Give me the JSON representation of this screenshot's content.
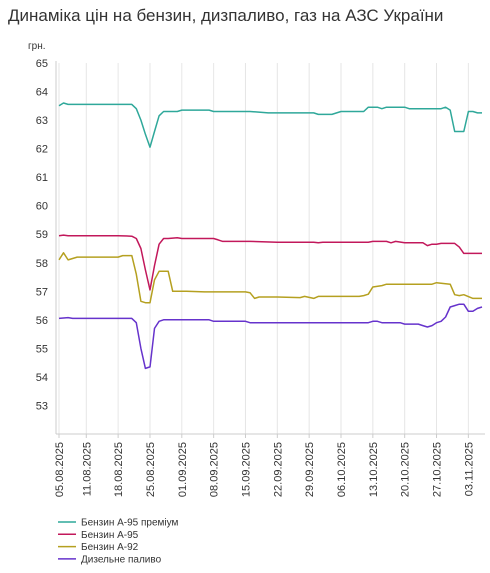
{
  "title": "Динаміка цін на бензин, дизпаливо, газ на АЗС України",
  "chart_data": {
    "type": "line",
    "title": "Динаміка цін на бензин, дизпаливо, газ на АЗС України",
    "ylabel": "грн.",
    "xlabel": "",
    "ylim": [
      52,
      65
    ],
    "yticks": [
      53,
      54,
      55,
      56,
      57,
      58,
      59,
      60,
      61,
      62,
      63,
      64,
      65
    ],
    "x_tick_labels": [
      "05.08.2025",
      "11.08.2025",
      "18.08.2025",
      "25.08.2025",
      "01.09.2025",
      "08.09.2025",
      "15.09.2025",
      "22.09.2025",
      "29.09.2025",
      "06.10.2025",
      "13.10.2025",
      "20.10.2025",
      "27.10.2025",
      "03.11.2025"
    ],
    "x_tick_index": [
      0,
      6,
      13,
      20,
      27,
      34,
      41,
      48,
      55,
      62,
      69,
      76,
      83,
      90
    ],
    "x_count": 94,
    "grid": "vertical",
    "legend_position": "bottom-left",
    "series": [
      {
        "name": "Бензин А-95 преміум",
        "color": "#2fa89a",
        "points": [
          [
            0,
            63.5
          ],
          [
            1,
            63.6
          ],
          [
            2,
            63.55
          ],
          [
            3,
            63.55
          ],
          [
            13,
            63.55
          ],
          [
            16,
            63.55
          ],
          [
            17,
            63.4
          ],
          [
            18,
            63.0
          ],
          [
            19,
            62.5
          ],
          [
            20,
            62.05
          ],
          [
            21,
            62.6
          ],
          [
            22,
            63.15
          ],
          [
            23,
            63.3
          ],
          [
            24,
            63.3
          ],
          [
            26,
            63.3
          ],
          [
            27,
            63.35
          ],
          [
            33,
            63.35
          ],
          [
            34,
            63.3
          ],
          [
            41,
            63.3
          ],
          [
            42,
            63.3
          ],
          [
            46,
            63.25
          ],
          [
            48,
            63.25
          ],
          [
            56,
            63.25
          ],
          [
            57,
            63.2
          ],
          [
            60,
            63.2
          ],
          [
            62,
            63.3
          ],
          [
            67,
            63.3
          ],
          [
            68,
            63.45
          ],
          [
            70,
            63.45
          ],
          [
            71,
            63.4
          ],
          [
            72,
            63.45
          ],
          [
            76,
            63.45
          ],
          [
            77,
            63.4
          ],
          [
            84,
            63.4
          ],
          [
            85,
            63.45
          ],
          [
            86,
            63.35
          ],
          [
            87,
            62.6
          ],
          [
            88,
            62.6
          ],
          [
            89,
            62.6
          ],
          [
            90,
            63.3
          ],
          [
            91,
            63.3
          ],
          [
            92,
            63.25
          ],
          [
            93,
            63.25
          ]
        ]
      },
      {
        "name": "Бензин А-95",
        "color": "#c2185b",
        "points": [
          [
            0,
            58.95
          ],
          [
            1,
            58.97
          ],
          [
            2,
            58.95
          ],
          [
            13,
            58.95
          ],
          [
            16,
            58.93
          ],
          [
            17,
            58.85
          ],
          [
            18,
            58.5
          ],
          [
            19,
            57.75
          ],
          [
            20,
            57.05
          ],
          [
            21,
            57.9
          ],
          [
            22,
            58.65
          ],
          [
            23,
            58.85
          ],
          [
            24,
            58.85
          ],
          [
            26,
            58.88
          ],
          [
            27,
            58.85
          ],
          [
            34,
            58.85
          ],
          [
            35,
            58.8
          ],
          [
            36,
            58.75
          ],
          [
            42,
            58.75
          ],
          [
            48,
            58.72
          ],
          [
            56,
            58.72
          ],
          [
            57,
            58.7
          ],
          [
            58,
            58.72
          ],
          [
            68,
            58.72
          ],
          [
            69,
            58.75
          ],
          [
            72,
            58.75
          ],
          [
            73,
            58.7
          ],
          [
            74,
            58.75
          ],
          [
            76,
            58.7
          ],
          [
            80,
            58.7
          ],
          [
            81,
            58.6
          ],
          [
            82,
            58.65
          ],
          [
            83,
            58.65
          ],
          [
            84,
            58.68
          ],
          [
            87,
            58.68
          ],
          [
            88,
            58.55
          ],
          [
            89,
            58.33
          ],
          [
            93,
            58.33
          ]
        ]
      },
      {
        "name": "Бензин А-92",
        "color": "#b5a020",
        "points": [
          [
            0,
            58.1
          ],
          [
            1,
            58.35
          ],
          [
            2,
            58.1
          ],
          [
            3,
            58.15
          ],
          [
            4,
            58.2
          ],
          [
            5,
            58.2
          ],
          [
            13,
            58.2
          ],
          [
            14,
            58.25
          ],
          [
            16,
            58.25
          ],
          [
            17,
            57.6
          ],
          [
            18,
            56.65
          ],
          [
            19,
            56.6
          ],
          [
            20,
            56.6
          ],
          [
            21,
            57.4
          ],
          [
            22,
            57.7
          ],
          [
            23,
            57.7
          ],
          [
            24,
            57.7
          ],
          [
            25,
            57.0
          ],
          [
            27,
            57.0
          ],
          [
            28,
            57.0
          ],
          [
            32,
            56.98
          ],
          [
            41,
            56.98
          ],
          [
            42,
            56.95
          ],
          [
            43,
            56.75
          ],
          [
            44,
            56.8
          ],
          [
            48,
            56.8
          ],
          [
            53,
            56.78
          ],
          [
            54,
            56.82
          ],
          [
            56,
            56.75
          ],
          [
            57,
            56.82
          ],
          [
            66,
            56.82
          ],
          [
            67,
            56.85
          ],
          [
            68,
            56.9
          ],
          [
            69,
            57.15
          ],
          [
            71,
            57.2
          ],
          [
            72,
            57.25
          ],
          [
            82,
            57.25
          ],
          [
            83,
            57.3
          ],
          [
            86,
            57.25
          ],
          [
            87,
            56.88
          ],
          [
            88,
            56.85
          ],
          [
            89,
            56.88
          ],
          [
            91,
            56.75
          ],
          [
            93,
            56.75
          ]
        ]
      },
      {
        "name": "Дизельне паливо",
        "color": "#6633cc",
        "points": [
          [
            0,
            56.05
          ],
          [
            2,
            56.08
          ],
          [
            3,
            56.05
          ],
          [
            11,
            56.05
          ],
          [
            13,
            56.05
          ],
          [
            16,
            56.05
          ],
          [
            17,
            55.9
          ],
          [
            18,
            55.0
          ],
          [
            19,
            54.3
          ],
          [
            20,
            54.35
          ],
          [
            21,
            55.7
          ],
          [
            22,
            55.95
          ],
          [
            23,
            56.0
          ],
          [
            24,
            56.0
          ],
          [
            33,
            56.0
          ],
          [
            34,
            55.95
          ],
          [
            41,
            55.95
          ],
          [
            42,
            55.9
          ],
          [
            48,
            55.9
          ],
          [
            55,
            55.9
          ],
          [
            68,
            55.9
          ],
          [
            69,
            55.95
          ],
          [
            70,
            55.95
          ],
          [
            71,
            55.9
          ],
          [
            75,
            55.9
          ],
          [
            76,
            55.85
          ],
          [
            79,
            55.85
          ],
          [
            80,
            55.8
          ],
          [
            81,
            55.75
          ],
          [
            82,
            55.8
          ],
          [
            83,
            55.9
          ],
          [
            84,
            55.95
          ],
          [
            85,
            56.1
          ],
          [
            86,
            56.45
          ],
          [
            87,
            56.5
          ],
          [
            88,
            56.55
          ],
          [
            89,
            56.55
          ],
          [
            90,
            56.3
          ],
          [
            91,
            56.3
          ],
          [
            92,
            56.4
          ],
          [
            93,
            56.45
          ]
        ]
      }
    ]
  }
}
